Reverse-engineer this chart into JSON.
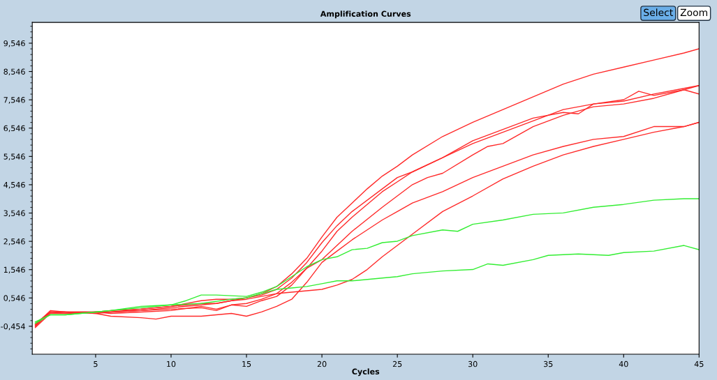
{
  "chart_data": {
    "type": "line",
    "title": "Amplification Curves",
    "xlabel": "Cycles",
    "annotations": [
      "Select",
      "Zoom"
    ],
    "xlim": [
      0.8,
      45
    ],
    "xticks": [
      5,
      10,
      15,
      20,
      25,
      30,
      35,
      40,
      45
    ],
    "ylim": [
      -1.44,
      10.28
    ],
    "yticks": [
      {
        "value": -0.454,
        "label": "-0,454"
      },
      {
        "value": 0.546,
        "label": "0,546"
      },
      {
        "value": 1.546,
        "label": "1,546"
      },
      {
        "value": 2.546,
        "label": "2,546"
      },
      {
        "value": 3.546,
        "label": "3,546"
      },
      {
        "value": 4.546,
        "label": "4,546"
      },
      {
        "value": 5.546,
        "label": "5,546"
      },
      {
        "value": 6.546,
        "label": "6,546"
      },
      {
        "value": 7.546,
        "label": "7,546"
      },
      {
        "value": 8.546,
        "label": "8,546"
      },
      {
        "value": 9.546,
        "label": "9,546"
      }
    ],
    "grid": false,
    "legend": false,
    "marker": "none",
    "line_style": "solid",
    "series": [
      {
        "color": "#ff2a2a",
        "x": [
          1,
          2,
          3,
          5,
          6,
          8,
          10,
          12,
          13,
          14,
          15,
          16,
          17,
          18,
          19,
          20,
          21,
          22,
          23,
          24,
          25,
          26,
          28,
          30,
          32,
          34,
          36,
          38,
          40,
          42,
          44,
          45
        ],
        "values": [
          -0.4,
          0.05,
          0.05,
          0.05,
          0.1,
          0.15,
          0.25,
          0.45,
          0.5,
          0.5,
          0.55,
          0.7,
          0.95,
          1.4,
          1.95,
          2.7,
          3.4,
          3.9,
          4.4,
          4.85,
          5.2,
          5.6,
          6.25,
          6.75,
          7.2,
          7.65,
          8.1,
          8.45,
          8.7,
          8.95,
          9.2,
          9.35
        ]
      },
      {
        "color": "#ff2a2a",
        "x": [
          1,
          2,
          3,
          5,
          6,
          8,
          10,
          12,
          13,
          14,
          15,
          16,
          17,
          18,
          19,
          20,
          21,
          22,
          24,
          25,
          26,
          28,
          30,
          32,
          34,
          36,
          38,
          40,
          41,
          42,
          44,
          45
        ],
        "values": [
          -0.45,
          0.05,
          0.05,
          0.0,
          0.05,
          0.1,
          0.2,
          0.3,
          0.35,
          0.45,
          0.55,
          0.65,
          0.85,
          1.25,
          1.8,
          2.5,
          3.1,
          3.6,
          4.4,
          4.8,
          5.0,
          5.5,
          6.0,
          6.4,
          6.8,
          7.2,
          7.4,
          7.55,
          7.85,
          7.7,
          7.9,
          7.75
        ]
      },
      {
        "color": "#ff2a2a",
        "x": [
          1,
          2,
          3,
          5,
          6,
          8,
          10,
          12,
          13,
          14,
          15,
          16,
          17,
          18,
          19,
          20,
          21,
          22,
          24,
          25,
          26,
          28,
          30,
          32,
          34,
          36,
          37,
          38,
          40,
          42,
          44,
          45
        ],
        "values": [
          -0.5,
          0.0,
          0.0,
          0.05,
          0.05,
          0.1,
          0.15,
          0.2,
          0.1,
          0.3,
          0.25,
          0.45,
          0.6,
          1.0,
          1.6,
          2.2,
          2.9,
          3.4,
          4.3,
          4.65,
          5.0,
          5.5,
          6.1,
          6.5,
          6.9,
          7.1,
          7.05,
          7.4,
          7.5,
          7.75,
          7.95,
          8.05
        ]
      },
      {
        "color": "#ff2a2a",
        "x": [
          1,
          2,
          3,
          5,
          6,
          8,
          10,
          12,
          13,
          14,
          15,
          16,
          17,
          18,
          19,
          20,
          21,
          22,
          24,
          25,
          26,
          27,
          28,
          30,
          31,
          32,
          34,
          36,
          38,
          40,
          42,
          44,
          45
        ],
        "values": [
          -0.45,
          0.05,
          0.0,
          0.05,
          0.0,
          0.05,
          0.1,
          0.25,
          0.15,
          0.3,
          0.35,
          0.5,
          0.7,
          1.1,
          1.6,
          1.9,
          2.4,
          2.9,
          3.75,
          4.15,
          4.55,
          4.8,
          4.95,
          5.6,
          5.9,
          6.0,
          6.6,
          7.0,
          7.3,
          7.4,
          7.6,
          7.9,
          8.05
        ]
      },
      {
        "color": "#ff2a2a",
        "x": [
          1,
          2,
          3,
          5,
          6,
          8,
          9,
          10,
          12,
          13,
          14,
          15,
          16,
          17,
          18,
          19,
          20,
          21,
          22,
          24,
          25,
          26,
          28,
          30,
          32,
          34,
          36,
          38,
          40,
          42,
          44,
          45
        ],
        "values": [
          -0.4,
          0.1,
          0.05,
          0.0,
          -0.1,
          -0.15,
          -0.2,
          -0.1,
          -0.1,
          -0.05,
          0.0,
          -0.1,
          0.05,
          0.25,
          0.5,
          1.1,
          1.8,
          2.2,
          2.6,
          3.3,
          3.6,
          3.9,
          4.3,
          4.8,
          5.2,
          5.6,
          5.9,
          6.15,
          6.25,
          6.6,
          6.6,
          6.75
        ]
      },
      {
        "color": "#ff2a2a",
        "x": [
          1,
          2,
          3,
          5,
          6,
          8,
          10,
          12,
          13,
          14,
          15,
          16,
          17,
          18,
          19,
          20,
          21,
          22,
          23,
          24,
          25,
          26,
          28,
          30,
          32,
          34,
          36,
          38,
          40,
          42,
          44,
          45
        ],
        "values": [
          -0.35,
          0.05,
          0.05,
          0.05,
          0.05,
          0.15,
          0.25,
          0.35,
          0.35,
          0.45,
          0.5,
          0.6,
          0.7,
          0.75,
          0.8,
          0.85,
          1.0,
          1.2,
          1.55,
          2.0,
          2.4,
          2.8,
          3.6,
          4.15,
          4.75,
          5.2,
          5.6,
          5.9,
          6.15,
          6.4,
          6.6,
          6.75
        ]
      },
      {
        "color": "#33ee33",
        "x": [
          1,
          2,
          3,
          5,
          6,
          8,
          10,
          11,
          12,
          13,
          15,
          16,
          17,
          18,
          19,
          20,
          21,
          22,
          23,
          24,
          25,
          26,
          28,
          29,
          30,
          32,
          34,
          36,
          38,
          40,
          42,
          44,
          45
        ],
        "values": [
          -0.3,
          -0.05,
          -0.05,
          0.05,
          0.1,
          0.25,
          0.3,
          0.45,
          0.65,
          0.65,
          0.6,
          0.75,
          0.95,
          1.3,
          1.65,
          1.9,
          2.0,
          2.25,
          2.3,
          2.5,
          2.55,
          2.75,
          2.95,
          2.9,
          3.15,
          3.3,
          3.5,
          3.55,
          3.75,
          3.85,
          4.0,
          4.05,
          4.05
        ]
      },
      {
        "color": "#33ee33",
        "x": [
          1,
          2,
          3,
          5,
          6,
          8,
          10,
          12,
          14,
          15,
          16,
          17,
          18,
          19,
          20,
          21,
          22,
          24,
          25,
          26,
          28,
          30,
          31,
          32,
          34,
          35,
          37,
          39,
          40,
          42,
          44,
          45
        ],
        "values": [
          -0.35,
          -0.05,
          -0.05,
          0.05,
          0.1,
          0.2,
          0.3,
          0.35,
          0.5,
          0.55,
          0.7,
          0.85,
          0.9,
          0.95,
          1.05,
          1.15,
          1.15,
          1.25,
          1.3,
          1.4,
          1.5,
          1.55,
          1.75,
          1.7,
          1.9,
          2.05,
          2.1,
          2.05,
          2.15,
          2.2,
          2.4,
          2.25
        ]
      }
    ]
  }
}
